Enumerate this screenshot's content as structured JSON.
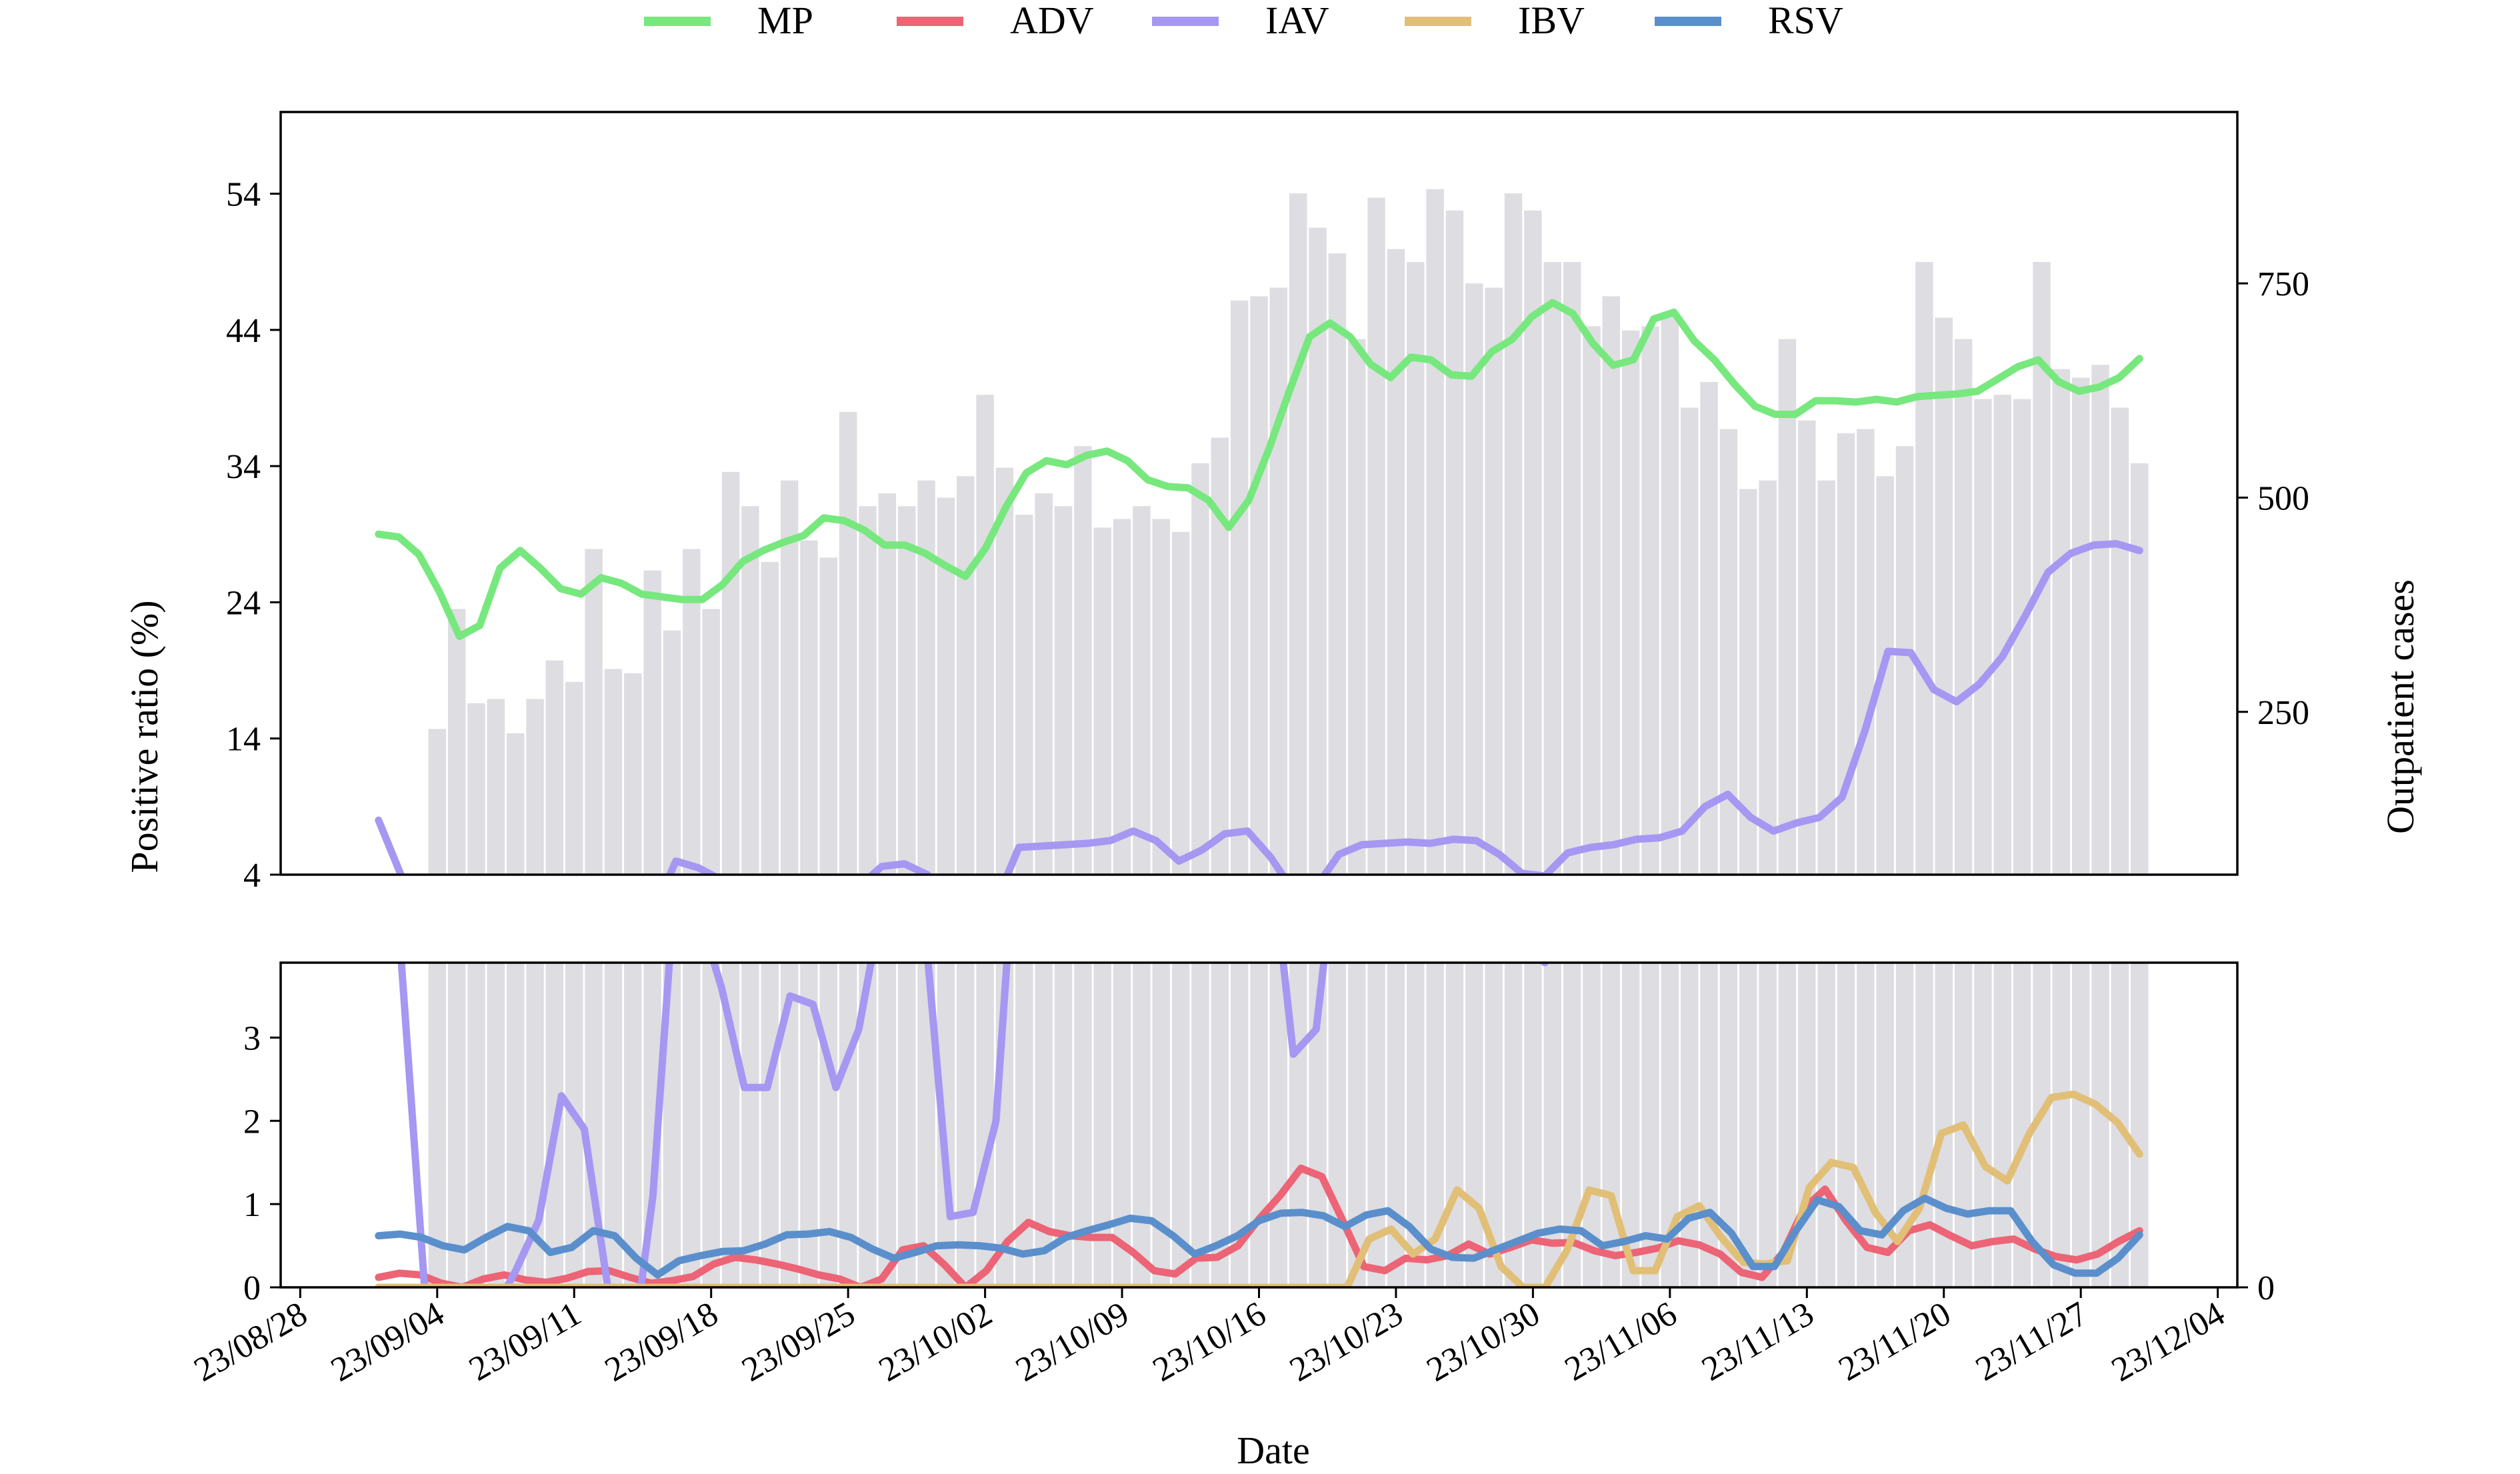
{
  "chart_data": {
    "type": "line",
    "xlabel": "Date",
    "ylabel_left": "Positive ratio (%)",
    "ylabel_right": "Outpatient cases",
    "x_ticks": [
      "23/08/28",
      "23/09/04",
      "23/09/11",
      "23/09/18",
      "23/09/25",
      "23/10/02",
      "23/10/09",
      "23/10/16",
      "23/10/23",
      "23/10/30",
      "23/11/06",
      "23/11/13",
      "23/11/20",
      "23/11/27",
      "23/12/04"
    ],
    "upper_yticks": [
      "4",
      "14",
      "24",
      "34",
      "44",
      "54"
    ],
    "lower_yticks": [
      "0",
      "1",
      "2",
      "3"
    ],
    "right_yticks": [
      "250",
      "500",
      "750"
    ],
    "right_lower_ytick": "0",
    "upper_ylim": [
      4,
      60
    ],
    "lower_ylim": [
      0,
      3.9
    ],
    "right_ylim": [
      60,
      950
    ],
    "x_start_date": "2023-09-01",
    "x_end_date": "2023-11-30",
    "x_range": [
      "2023-08-27",
      "2023-12-05"
    ],
    "bars": {
      "name": "Outpatient cases",
      "color": "#dddde2",
      "values": [
        230,
        370,
        260,
        265,
        225,
        265,
        310,
        285,
        440,
        300,
        295,
        415,
        345,
        440,
        370,
        530,
        490,
        425,
        520,
        450,
        430,
        600,
        490,
        505,
        490,
        520,
        500,
        525,
        620,
        535,
        480,
        505,
        490,
        560,
        465,
        475,
        490,
        475,
        460,
        540,
        570,
        730,
        735,
        745,
        855,
        815,
        785,
        685,
        850,
        790,
        775,
        860,
        835,
        750,
        745,
        855,
        835,
        775,
        775,
        700,
        735,
        695,
        700,
        715,
        605,
        635,
        580,
        510,
        520,
        685,
        590,
        520,
        575,
        580,
        525,
        560,
        775,
        710,
        685,
        615,
        620,
        615,
        775,
        650,
        640,
        655,
        605,
        540
      ],
      "last_date": "2023-11-30"
    },
    "series": [
      {
        "name": "MP",
        "color": "#77e87e",
        "values": [
          29,
          28.8,
          27.5,
          24.8,
          21.5,
          22.3,
          26.5,
          27.8,
          26.5,
          25,
          24.6,
          25.8,
          25.4,
          24.6,
          24.4,
          24.2,
          24.2,
          25.3,
          27,
          27.8,
          28.4,
          28.9,
          30.2,
          30,
          29.3,
          28.2,
          28.2,
          27.6,
          26.7,
          25.9,
          28,
          31,
          33.5,
          34.4,
          34.1,
          34.8,
          35.1,
          34.4,
          33,
          32.5,
          32.4,
          31.5,
          29.5,
          31.5,
          35.3,
          39.5,
          43.5,
          44.5,
          43.5,
          41.5,
          40.5,
          42,
          41.8,
          40.7,
          40.6,
          42.4,
          43.3,
          45,
          46,
          45.2,
          43,
          41.4,
          41.8,
          44.8,
          45.3,
          43.2,
          41.8,
          40,
          38.4,
          37.8,
          37.8,
          38.8,
          38.8,
          38.7,
          38.9,
          38.7,
          39.1,
          39.2,
          39.3,
          39.5,
          40.4,
          41.3,
          41.8,
          40.2,
          39.5,
          39.8,
          40.5,
          41.9
        ]
      },
      {
        "name": "ADV",
        "color": "#ec6475",
        "values": [
          0.12,
          0.17,
          0.15,
          0.05,
          0,
          0.1,
          0.15,
          0.09,
          0.06,
          0.11,
          0.19,
          0.2,
          0.12,
          0.05,
          0.08,
          0.13,
          0.28,
          0.36,
          0.33,
          0.28,
          0.22,
          0.15,
          0.1,
          0,
          0.1,
          0.45,
          0.5,
          0.27,
          0,
          0.2,
          0.55,
          0.78,
          0.67,
          0.62,
          0.6,
          0.6,
          0.42,
          0.2,
          0.16,
          0.35,
          0.36,
          0.5,
          0.82,
          1.1,
          1.43,
          1.33,
          0.8,
          0.25,
          0.2,
          0.35,
          0.33,
          0.38,
          0.52,
          0.4,
          0.48,
          0.57,
          0.53,
          0.54,
          0.44,
          0.38,
          0.42,
          0.47,
          0.56,
          0.51,
          0.4,
          0.18,
          0.12,
          0.42,
          0.95,
          1.18,
          0.8,
          0.48,
          0.42,
          0.68,
          0.75,
          0.62,
          0.5,
          0.55,
          0.58,
          0.46,
          0.37,
          0.33,
          0.4,
          0.55,
          0.68
        ]
      },
      {
        "name": "IAV",
        "color": "#a597f2",
        "values": [
          8,
          3.9,
          0.05,
          -0.4,
          -0.6,
          -0.3,
          0.2,
          0.8,
          2.3,
          1.9,
          0.05,
          -1,
          1.1,
          5,
          4.5,
          3.6,
          2.4,
          2.4,
          3.5,
          3.4,
          2.4,
          3.1,
          4.6,
          4.8,
          4,
          0.85,
          0.9,
          2,
          6,
          6.1,
          6.2,
          6.3,
          6.5,
          7.2,
          6.5,
          5,
          5.8,
          7,
          7.2,
          5.3,
          2.8,
          3.1,
          5.5,
          6.2,
          6.3,
          6.4,
          6.3,
          6.6,
          6.5,
          5.5,
          4.1,
          3.9,
          5.6,
          6,
          6.2,
          6.6,
          6.7,
          7.2,
          9,
          9.9,
          8.2,
          7.2,
          7.8,
          8.2,
          9.7,
          14.6,
          20.4,
          20.3,
          17.6,
          16.7,
          18,
          20,
          23,
          26.2,
          27.6,
          28.2,
          28.3,
          27.8
        ]
      },
      {
        "name": "IBV",
        "color": "#e2bf77",
        "values": [
          0,
          0,
          0,
          0,
          0,
          0,
          0,
          0,
          0,
          0,
          0,
          0,
          0,
          0,
          0,
          0,
          0,
          0,
          0,
          0,
          0,
          0,
          0,
          0,
          0,
          0,
          0,
          0,
          0,
          0,
          0,
          0,
          0,
          0,
          0,
          0,
          0,
          0,
          0,
          0,
          0,
          0,
          0,
          0,
          0,
          0.58,
          0.7,
          0.4,
          0.58,
          1.17,
          0.95,
          0.25,
          0,
          0,
          0.45,
          1.17,
          1.1,
          0.2,
          0.2,
          0.85,
          0.98,
          0.6,
          0.3,
          0.28,
          0.32,
          1.2,
          1.5,
          1.44,
          0.9,
          0.55,
          0.95,
          1.85,
          1.95,
          1.45,
          1.28,
          1.85,
          2.28,
          2.32,
          2.2,
          1.98,
          1.6
        ]
      },
      {
        "name": "RSV",
        "color": "#5a8fcc",
        "values": [
          0.62,
          0.64,
          0.6,
          0.5,
          0.45,
          0.6,
          0.73,
          0.68,
          0.42,
          0.48,
          0.68,
          0.62,
          0.35,
          0.15,
          0.32,
          0.38,
          0.43,
          0.44,
          0.52,
          0.63,
          0.64,
          0.67,
          0.6,
          0.46,
          0.35,
          0.42,
          0.5,
          0.51,
          0.5,
          0.47,
          0.4,
          0.44,
          0.6,
          0.68,
          0.75,
          0.83,
          0.8,
          0.62,
          0.4,
          0.5,
          0.62,
          0.8,
          0.89,
          0.9,
          0.86,
          0.73,
          0.87,
          0.92,
          0.73,
          0.46,
          0.36,
          0.35,
          0.45,
          0.55,
          0.65,
          0.7,
          0.68,
          0.5,
          0.55,
          0.62,
          0.58,
          0.83,
          0.9,
          0.65,
          0.25,
          0.25,
          0.68,
          1.05,
          0.97,
          0.68,
          0.63,
          0.92,
          1.07,
          0.95,
          0.88,
          0.92,
          0.92,
          0.55,
          0.27,
          0.17,
          0.17,
          0.35,
          0.63
        ]
      }
    ],
    "legend_position": "top-center",
    "grid": false
  }
}
